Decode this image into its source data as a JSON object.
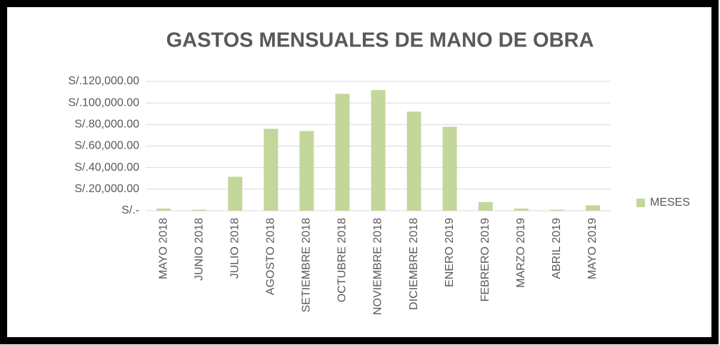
{
  "chart_data": {
    "type": "bar",
    "title": "GASTOS MENSUALES DE MANO DE OBRA",
    "categories": [
      "MAYO 2018",
      "JUNIO 2018",
      "JULIO 2018",
      "AGOSTO 2018",
      "SETIEMBRE 2018",
      "OCTUBRE 2018",
      "NOVIEMBRE 2018",
      "DICIEMBRE 2018",
      "ENERO 2019",
      "FEBRERO 2019",
      "MARZO 2019",
      "ABRIL 2019",
      "MAYO 2019"
    ],
    "series": [
      {
        "name": "MESES",
        "color": "#c4d79b",
        "values": [
          2000,
          1000,
          31500,
          76000,
          74000,
          108500,
          112000,
          92000,
          78000,
          8000,
          2000,
          1000,
          5000
        ]
      }
    ],
    "ylim": [
      0,
      120000
    ],
    "yticks": [
      {
        "value": 0,
        "label": "S/.-"
      },
      {
        "value": 20000,
        "label": "S/.20,000.00"
      },
      {
        "value": 40000,
        "label": "S/.40,000.00"
      },
      {
        "value": 60000,
        "label": "S/.60,000.00"
      },
      {
        "value": 80000,
        "label": "S/.80,000.00"
      },
      {
        "value": 100000,
        "label": "S/.100,000.00"
      },
      {
        "value": 120000,
        "label": "S/.120,000.00"
      }
    ],
    "grid": true,
    "legend": "right"
  }
}
